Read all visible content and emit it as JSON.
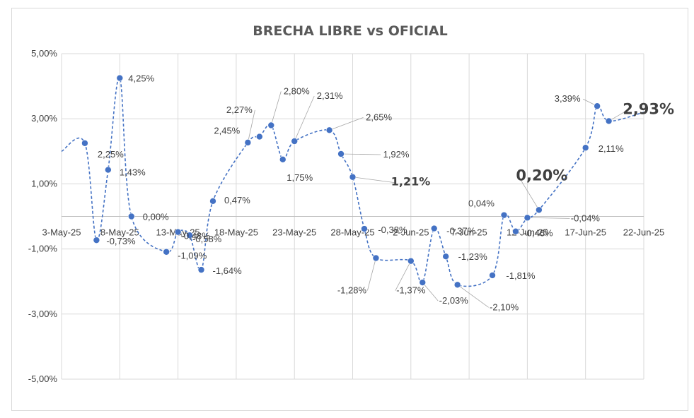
{
  "chart_data": {
    "type": "line",
    "title": "BRECHA LIBRE vs OFICIAL",
    "xlabel": "",
    "ylabel": "",
    "ylim": [
      -5,
      5
    ],
    "yticks": [
      {
        "v": 5,
        "label": "5,00%"
      },
      {
        "v": 3,
        "label": "3,00%"
      },
      {
        "v": 1,
        "label": "1,00%"
      },
      {
        "v": -1,
        "label": "-1,00%"
      },
      {
        "v": -3,
        "label": "-3,00%"
      },
      {
        "v": -5,
        "label": "-5,00%"
      }
    ],
    "xticks": [
      "3-May-25",
      "8-May-25",
      "13-May-25",
      "18-May-25",
      "23-May-25",
      "28-May-25",
      "2-Jun-25",
      "7-Jun-25",
      "12-Jun-25",
      "17-Jun-25",
      "22-Jun-25"
    ],
    "xrange": [
      "2025-05-03",
      "2025-06-22"
    ],
    "grid": true,
    "line_color": "#4472c4",
    "line_start": {
      "date": "2025-05-03",
      "value": 2.0
    },
    "line_end": {
      "date": "2025-06-22",
      "value": 3.2
    },
    "series": [
      {
        "name": "",
        "points": [
          {
            "date": "2025-05-05",
            "value": 2.25,
            "label": "2,25%",
            "style": "normal"
          },
          {
            "date": "2025-05-06",
            "value": -0.73,
            "label": "-0,73%",
            "style": "normal"
          },
          {
            "date": "2025-05-07",
            "value": 1.43,
            "label": "1,43%",
            "style": "normal"
          },
          {
            "date": "2025-05-08",
            "value": 4.25,
            "label": "4,25%",
            "style": "normal"
          },
          {
            "date": "2025-05-09",
            "value": 0.0,
            "label": "0,00%",
            "style": "normal"
          },
          {
            "date": "2025-05-12",
            "value": -1.09,
            "label": "-1,09%",
            "style": "normal"
          },
          {
            "date": "2025-05-13",
            "value": -0.48,
            "label": "-0,48%",
            "style": "normal"
          },
          {
            "date": "2025-05-14",
            "value": -0.58,
            "label": "-0,58%",
            "style": "normal"
          },
          {
            "date": "2025-05-15",
            "value": -1.64,
            "label": "-1,64%",
            "style": "normal"
          },
          {
            "date": "2025-05-16",
            "value": 0.47,
            "label": "0,47%",
            "style": "normal"
          },
          {
            "date": "2025-05-19",
            "value": 2.27,
            "label": "2,27%",
            "style": "normal"
          },
          {
            "date": "2025-05-20",
            "value": 2.45,
            "label": "2,45%",
            "style": "normal"
          },
          {
            "date": "2025-05-21",
            "value": 2.8,
            "label": "2,80%",
            "style": "normal"
          },
          {
            "date": "2025-05-22",
            "value": 1.75,
            "label": "1,75%",
            "style": "normal"
          },
          {
            "date": "2025-05-23",
            "value": 2.31,
            "label": "2,31%",
            "style": "normal"
          },
          {
            "date": "2025-05-26",
            "value": 2.65,
            "label": "2,65%",
            "style": "normal"
          },
          {
            "date": "2025-05-27",
            "value": 1.92,
            "label": "1,92%",
            "style": "normal"
          },
          {
            "date": "2025-05-28",
            "value": 1.21,
            "label": "1,21%",
            "style": "big"
          },
          {
            "date": "2025-05-29",
            "value": -0.38,
            "label": "-0,38%",
            "style": "normal"
          },
          {
            "date": "2025-05-30",
            "value": -1.28,
            "label": "-1,28%",
            "style": "normal"
          },
          {
            "date": "2025-06-02",
            "value": -1.37,
            "label": "-1,37%",
            "style": "normal"
          },
          {
            "date": "2025-06-03",
            "value": -2.03,
            "label": "-2,03%",
            "style": "normal"
          },
          {
            "date": "2025-06-04",
            "value": -0.37,
            "label": "-0,37%",
            "style": "normal"
          },
          {
            "date": "2025-06-05",
            "value": -1.23,
            "label": "-1,23%",
            "style": "normal"
          },
          {
            "date": "2025-06-06",
            "value": -2.1,
            "label": "-2,10%",
            "style": "normal"
          },
          {
            "date": "2025-06-09",
            "value": -1.81,
            "label": "-1,81%",
            "style": "normal"
          },
          {
            "date": "2025-06-10",
            "value": 0.04,
            "label": "0,04%",
            "style": "normal"
          },
          {
            "date": "2025-06-11",
            "value": -0.46,
            "label": "-0,46%",
            "style": "normal"
          },
          {
            "date": "2025-06-12",
            "value": -0.04,
            "label": "-0,04%",
            "style": "normal"
          },
          {
            "date": "2025-06-13",
            "value": 0.2,
            "label": "0,20%",
            "style": "xl"
          },
          {
            "date": "2025-06-17",
            "value": 2.11,
            "label": "2,11%",
            "style": "normal"
          },
          {
            "date": "2025-06-18",
            "value": 3.39,
            "label": "3,39%",
            "style": "normal"
          },
          {
            "date": "2025-06-19",
            "value": 2.93,
            "label": "2,93%",
            "style": "xl"
          }
        ]
      }
    ]
  }
}
